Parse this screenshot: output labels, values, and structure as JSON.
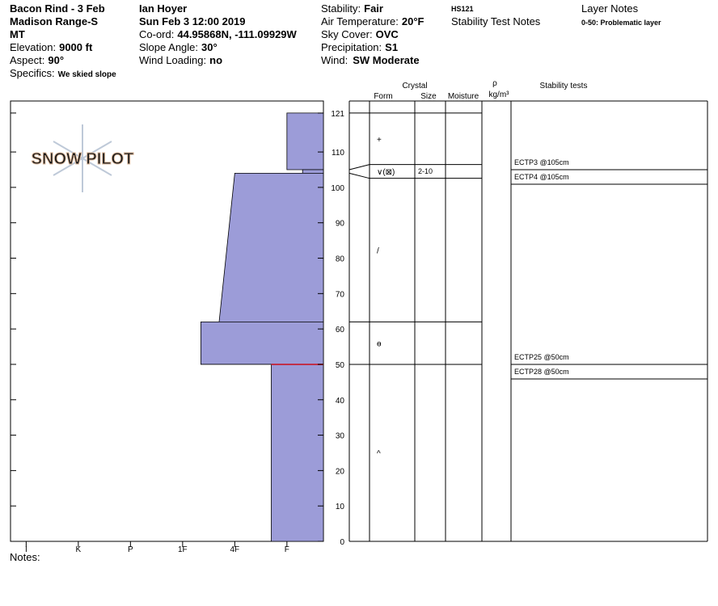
{
  "header": {
    "location": [
      "Bacon Rind - 3 Feb",
      "Madison Range-S",
      "MT"
    ],
    "elevation": {
      "label": "Elevation:",
      "value": "9000 ft"
    },
    "aspect": {
      "label": "Aspect:",
      "value": "90°"
    },
    "specifics": {
      "label": "Specifics:",
      "value": "We skied slope"
    },
    "observer": "Ian Hoyer",
    "date": "Sun Feb 3 12:00 2019",
    "coord": {
      "label": "Co-ord:",
      "value": "44.95868N, -111.09929W"
    },
    "slope": {
      "label": "Slope Angle:",
      "value": "30°"
    },
    "wind_loading": {
      "label": "Wind Loading:",
      "value": "no"
    },
    "stability": {
      "label": "Stability:",
      "value": "Fair"
    },
    "air_temp": {
      "label": "Air Temperature:",
      "value": "20°F"
    },
    "sky": {
      "label": "Sky Cover:",
      "value": "OVC"
    },
    "precip": {
      "label": "Precipitation:",
      "value": "S1"
    },
    "wind": {
      "label": "Wind:",
      "value": "SW Moderate"
    },
    "hs": "HS121",
    "stability_notes_title": "Stability Test Notes",
    "layer_notes_title": "Layer Notes",
    "layer_note": "0-50: Problematic layer"
  },
  "logo": "SNOW PILOT",
  "chart_data": {
    "type": "snow-profile",
    "color": "#9c9cd8",
    "critical_color": "#c0304a",
    "ylim": [
      0,
      124.4
    ],
    "yticks": [
      0,
      10,
      20,
      30,
      40,
      50,
      60,
      70,
      80,
      90,
      100,
      110,
      121
    ],
    "xlim": [
      6.3,
      0.3
    ],
    "xticks": [
      {
        "value": 6,
        "label": "I"
      },
      {
        "value": 5,
        "label": "K"
      },
      {
        "value": 4,
        "label": "P"
      },
      {
        "value": 3,
        "label": "1F"
      },
      {
        "value": 2,
        "label": "4F"
      },
      {
        "value": 1,
        "label": "F"
      }
    ],
    "layers": [
      {
        "top": 121,
        "bottom": 105,
        "hardness_top": 1,
        "hardness_bottom": 1,
        "form": "+"
      },
      {
        "top": 105,
        "bottom": 104,
        "hardness_top": 0.7,
        "hardness_bottom": 0.7,
        "form": "∨(⊠)",
        "size": "2-10"
      },
      {
        "top": 104,
        "bottom": 62,
        "hardness_top": 2,
        "hardness_bottom": 2.3,
        "form": "/"
      },
      {
        "top": 62,
        "bottom": 50,
        "hardness_top": 2.65,
        "hardness_bottom": 2.65,
        "form": "ɵ"
      },
      {
        "top": 50,
        "bottom": 0,
        "hardness_top": 1.3,
        "hardness_bottom": 1.3,
        "form": "^"
      }
    ],
    "critical_height": 50
  },
  "table": {
    "crystal": "Crystal",
    "form": "Form",
    "size": "Size",
    "moisture": "Moisture",
    "rho": "ρ",
    "density_unit": "kg/m³",
    "stability_tests": "Stability tests"
  },
  "stability_tests": [
    {
      "label": "ECTP3 @105cm",
      "height": 105
    },
    {
      "label": "ECTP4 @105cm",
      "height": 105
    },
    {
      "label": "ECTP25 @50cm",
      "height": 50
    },
    {
      "label": "ECTP28 @50cm",
      "height": 50
    }
  ],
  "notes_label": "Notes:"
}
